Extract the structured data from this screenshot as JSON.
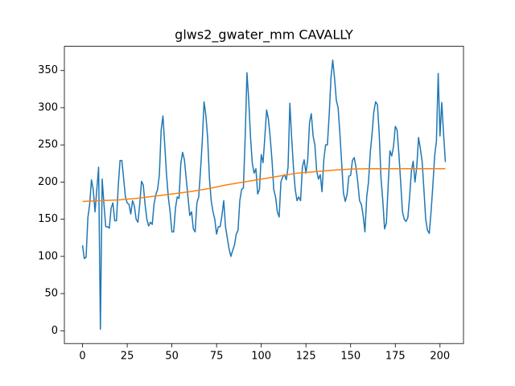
{
  "chart_data": {
    "type": "line",
    "title": "glws2_gwater_mm CAVALLY",
    "series": [
      {
        "color": "#1f77b4",
        "x": [
          0,
          1,
          2,
          3,
          4,
          5,
          6,
          7,
          8,
          9,
          10,
          11,
          12,
          13,
          14,
          15,
          16,
          17,
          18,
          19,
          20,
          21,
          22,
          23,
          24,
          25,
          26,
          27,
          28,
          29,
          30,
          31,
          32,
          33,
          34,
          35,
          36,
          37,
          38,
          39,
          40,
          41,
          42,
          43,
          44,
          45,
          46,
          47,
          48,
          49,
          50,
          51,
          52,
          53,
          54,
          55,
          56,
          57,
          58,
          59,
          60,
          61,
          62,
          63,
          64,
          65,
          66,
          67,
          68,
          69,
          70,
          71,
          72,
          73,
          74,
          75,
          76,
          77,
          78,
          79,
          80,
          81,
          82,
          83,
          84,
          85,
          86,
          87,
          88,
          89,
          90,
          91,
          92,
          93,
          94,
          95,
          96,
          97,
          98,
          99,
          100,
          101,
          102,
          103,
          104,
          105,
          106,
          107,
          108,
          109,
          110,
          111,
          112,
          113,
          114,
          115,
          116,
          117,
          118,
          119,
          120,
          121,
          122,
          123,
          124,
          125,
          126,
          127,
          128,
          129,
          130,
          131,
          132,
          133,
          134,
          135,
          136,
          137,
          138,
          139,
          140,
          141,
          142,
          143,
          144,
          145,
          146,
          147,
          148,
          149,
          150,
          151,
          152,
          153,
          154,
          155,
          156,
          157,
          158,
          159,
          160,
          161,
          162,
          163,
          164,
          165,
          166,
          167,
          168,
          169,
          170,
          171,
          172,
          173,
          174,
          175,
          176,
          177,
          178,
          179,
          180,
          181,
          182,
          183,
          184,
          185,
          186,
          187,
          188,
          189,
          190,
          191,
          192,
          193,
          194,
          195,
          196,
          197,
          198,
          199,
          200,
          201,
          202,
          203
        ],
        "values": [
          115,
          97,
          99,
          152,
          170,
          203,
          190,
          160,
          190,
          220,
          2,
          204,
          170,
          140,
          140,
          138,
          165,
          172,
          148,
          148,
          195,
          229,
          229,
          205,
          180,
          172,
          170,
          157,
          175,
          168,
          150,
          146,
          170,
          201,
          196,
          170,
          150,
          141,
          146,
          143,
          170,
          183,
          190,
          210,
          270,
          289,
          250,
          210,
          180,
          160,
          133,
          133,
          165,
          180,
          178,
          225,
          240,
          230,
          205,
          180,
          155,
          160,
          137,
          133,
          172,
          180,
          215,
          255,
          308,
          290,
          260,
          205,
          175,
          160,
          150,
          130,
          140,
          140,
          155,
          175,
          140,
          125,
          110,
          100,
          108,
          115,
          130,
          135,
          175,
          190,
          192,
          260,
          347,
          310,
          260,
          225,
          212,
          218,
          184,
          190,
          237,
          226,
          260,
          297,
          285,
          260,
          230,
          190,
          180,
          160,
          153,
          200,
          207,
          210,
          203,
          220,
          306,
          260,
          220,
          190,
          175,
          180,
          175,
          220,
          230,
          212,
          230,
          280,
          292,
          262,
          250,
          215,
          204,
          210,
          187,
          230,
          250,
          250,
          290,
          340,
          364,
          340,
          310,
          300,
          265,
          225,
          185,
          174,
          183,
          208,
          209,
          229,
          233,
          220,
          200,
          175,
          170,
          155,
          133,
          180,
          200,
          240,
          265,
          295,
          308,
          304,
          265,
          205,
          175,
          137,
          145,
          195,
          242,
          235,
          248,
          275,
          270,
          238,
          200,
          160,
          150,
          147,
          152,
          180,
          215,
          228,
          200,
          220,
          260,
          245,
          228,
          190,
          150,
          135,
          131,
          160,
          195,
          235,
          255,
          346,
          262,
          307,
          265,
          227
        ]
      },
      {
        "color": "#ff7f0e",
        "x": [
          0,
          10,
          20,
          30,
          40,
          50,
          60,
          70,
          80,
          90,
          100,
          110,
          120,
          130,
          140,
          150,
          160,
          170,
          180,
          190,
          200,
          203
        ],
        "values": [
          174,
          175,
          176,
          178,
          181,
          184,
          187,
          191,
          196,
          200,
          204,
          208,
          212,
          214,
          216,
          217.5,
          218,
          218,
          218,
          218,
          218,
          218
        ]
      }
    ],
    "xlim": [
      -10.15,
      213.15
    ],
    "xticks": [
      0,
      25,
      50,
      75,
      100,
      125,
      150,
      175,
      200
    ],
    "ylim": [
      -17.2,
      382.6
    ],
    "yticks": [
      0,
      50,
      100,
      150,
      200,
      250,
      300,
      350
    ]
  }
}
